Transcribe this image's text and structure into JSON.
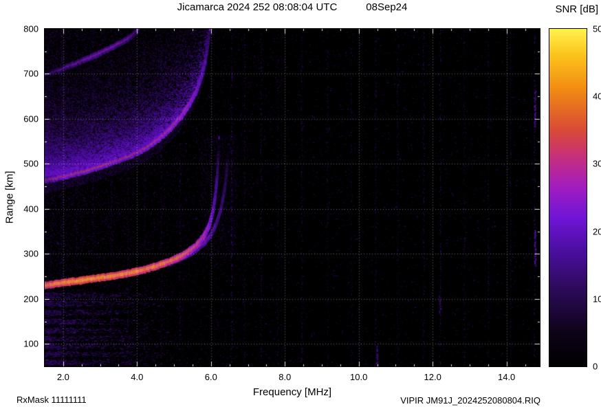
{
  "header": {
    "title_main": "Jicamarca 2024 252 08:08:04 UTC",
    "title_date": "08Sep24"
  },
  "footer": {
    "rx_mask": "RxMask 11111111",
    "file_id": "VIPIR  JM91J_2024252080804.RIQ"
  },
  "colorbar": {
    "title": "SNR [dB]",
    "ticks": [
      0,
      10,
      20,
      30,
      40,
      50
    ],
    "min": 0,
    "max": 50
  },
  "chart_data": {
    "type": "heatmap",
    "title": "Jicamarca 2024 252 08:08:04 UTC 08Sep24",
    "xlabel": "Frequency [MHz]",
    "ylabel": "Range [km]",
    "xlim": [
      1.5,
      14.9
    ],
    "ylim": [
      50,
      800
    ],
    "x_ticks": [
      2,
      4,
      6,
      8,
      10,
      12,
      14
    ],
    "x_tick_labels": [
      "2.0",
      "4.0",
      "6.0",
      "8.0",
      "10.0",
      "12.0",
      "14.0"
    ],
    "y_ticks": [
      100,
      200,
      300,
      400,
      500,
      600,
      700,
      800
    ],
    "grid": true,
    "legend_position": "none",
    "colorbar_label": "SNR [dB]",
    "snr_range": [
      0,
      50
    ],
    "colormap": {
      "stops": [
        {
          "p": 0.0,
          "c": "#000000"
        },
        {
          "p": 0.1,
          "c": "#0d0318"
        },
        {
          "p": 0.22,
          "c": "#2a0a55"
        },
        {
          "p": 0.34,
          "c": "#4a0e9e"
        },
        {
          "p": 0.44,
          "c": "#6f15d6"
        },
        {
          "p": 0.53,
          "c": "#a21cc0"
        },
        {
          "p": 0.62,
          "c": "#c62f7c"
        },
        {
          "p": 0.7,
          "c": "#d94a35"
        },
        {
          "p": 0.82,
          "c": "#f08a12"
        },
        {
          "p": 0.92,
          "c": "#fbc21a"
        },
        {
          "p": 1.0,
          "c": "#fff24d"
        }
      ]
    },
    "traces": [
      {
        "id": "omode",
        "name": "F-layer O-mode echo (first hop), asymptote near foF2 ~6.2 MHz",
        "thickness": 5,
        "jitter": 1.5,
        "points": [
          [
            1.5,
            230,
            44
          ],
          [
            2,
            236,
            46
          ],
          [
            2.5,
            241,
            47
          ],
          [
            3,
            247,
            47
          ],
          [
            3.5,
            253,
            46
          ],
          [
            4,
            261,
            46
          ],
          [
            4.5,
            272,
            45
          ],
          [
            5,
            287,
            44
          ],
          [
            5.3,
            300,
            42
          ],
          [
            5.6,
            318,
            40
          ],
          [
            5.8,
            338,
            38
          ],
          [
            5.95,
            362,
            36
          ],
          [
            6.05,
            392,
            33
          ],
          [
            6.12,
            430,
            30
          ],
          [
            6.17,
            475,
            27
          ],
          [
            6.2,
            520,
            22
          ],
          [
            6.22,
            560,
            15
          ]
        ]
      },
      {
        "id": "xmode",
        "name": "F-layer X-mode echo, asymptote near 6.5 MHz",
        "thickness": 2.5,
        "jitter": 1.2,
        "points": [
          [
            4.85,
            278,
            26
          ],
          [
            5.2,
            290,
            29
          ],
          [
            5.5,
            303,
            30
          ],
          [
            5.8,
            322,
            30
          ],
          [
            6.0,
            342,
            29
          ],
          [
            6.15,
            368,
            28
          ],
          [
            6.28,
            402,
            27
          ],
          [
            6.38,
            448,
            25
          ],
          [
            6.44,
            498,
            21
          ],
          [
            6.48,
            545,
            15
          ]
        ]
      },
      {
        "id": "hop2",
        "name": "Second-hop / spread-F echo arc (double range)",
        "thickness": 3.5,
        "jitter": 2.5,
        "points": [
          [
            1.5,
            463,
            29
          ],
          [
            2,
            472,
            33
          ],
          [
            2.5,
            482,
            34
          ],
          [
            3,
            494,
            34
          ],
          [
            3.5,
            508,
            33
          ],
          [
            4,
            524,
            33
          ],
          [
            4.3,
            538,
            34
          ],
          [
            4.6,
            556,
            35
          ],
          [
            4.9,
            578,
            36
          ],
          [
            5.2,
            606,
            36
          ],
          [
            5.4,
            630,
            35
          ],
          [
            5.6,
            660,
            34
          ],
          [
            5.75,
            695,
            32
          ],
          [
            5.85,
            730,
            30
          ],
          [
            5.92,
            765,
            27
          ],
          [
            5.97,
            800,
            23
          ]
        ]
      },
      {
        "id": "hop3",
        "name": "Third-hop echo arc (upper-left faint trace)",
        "thickness": 3,
        "jitter": 2,
        "points": [
          [
            1.5,
            697,
            18
          ],
          [
            2,
            712,
            23
          ],
          [
            2.5,
            728,
            26
          ],
          [
            3,
            746,
            28
          ],
          [
            3.5,
            766,
            27
          ],
          [
            3.8,
            780,
            25
          ],
          [
            4.05,
            800,
            21
          ]
        ]
      }
    ],
    "noise": {
      "seed": 20240908,
      "base_speckles": 6500,
      "left_speckles": 9000,
      "haze_dots": 26000,
      "haze_mean_km": 90,
      "asymptote_halo_dots": 1400,
      "dash_rows_km": [
        60,
        78,
        95,
        112,
        130,
        150,
        170,
        190,
        208
      ],
      "dash_dots": 2200,
      "rfi_stripes": [
        {
          "f": 1.95,
          "snr": 10
        },
        {
          "f": 2.35,
          "snr": 8
        },
        {
          "f": 2.8,
          "snr": 9
        },
        {
          "f": 3.3,
          "snr": 8
        },
        {
          "f": 3.75,
          "snr": 9
        },
        {
          "f": 4.2,
          "snr": 8
        },
        {
          "f": 4.65,
          "snr": 9
        },
        {
          "f": 5.15,
          "snr": 10
        },
        {
          "f": 6.55,
          "snr": 13
        },
        {
          "f": 6.9,
          "snr": 9
        },
        {
          "f": 7.35,
          "snr": 10
        },
        {
          "f": 7.8,
          "snr": 8
        },
        {
          "f": 8.45,
          "snr": 10
        },
        {
          "f": 9.15,
          "snr": 9
        },
        {
          "f": 9.8,
          "snr": 8
        },
        {
          "f": 10.45,
          "snr": 10
        },
        {
          "f": 11.05,
          "snr": 9
        },
        {
          "f": 11.75,
          "snr": 10
        },
        {
          "f": 12.2,
          "snr": 11
        },
        {
          "f": 12.85,
          "snr": 9
        },
        {
          "f": 13.5,
          "snr": 9
        },
        {
          "f": 14.1,
          "snr": 9
        },
        {
          "f": 14.75,
          "snr": 12
        }
      ],
      "bright_bars": [
        {
          "f": 14.78,
          "km": [
            272,
            352
          ],
          "snr": 20
        },
        {
          "f": 14.78,
          "km": [
            582,
            662
          ],
          "snr": 20
        },
        {
          "f": 10.5,
          "km": [
            48,
            96
          ],
          "snr": 16
        },
        {
          "f": 12.2,
          "km": [
            168,
            208
          ],
          "snr": 14
        }
      ]
    }
  }
}
